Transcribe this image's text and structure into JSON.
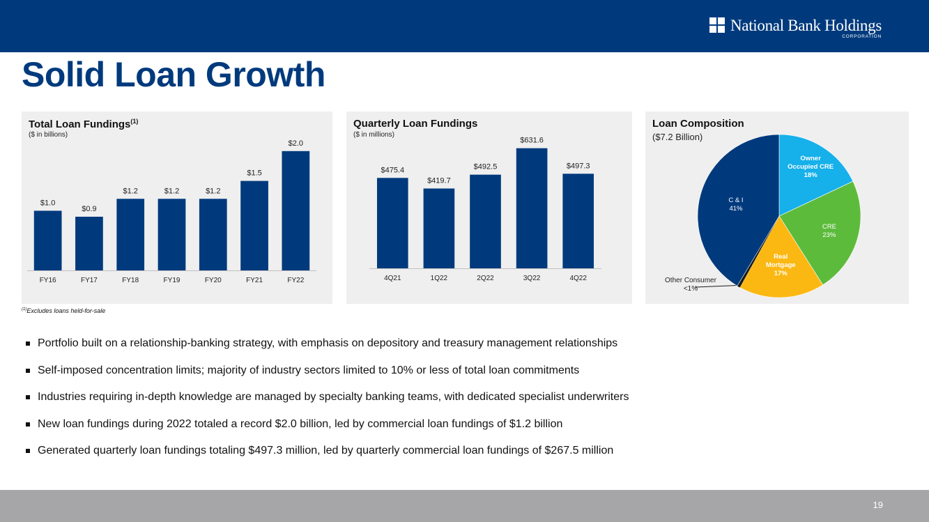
{
  "header": {
    "logo_text": "National Bank Holdings",
    "logo_sub": "CORPORATION",
    "brand_color": "#003a7d"
  },
  "page_title": "Solid Loan Growth",
  "chart_data": [
    {
      "type": "bar",
      "title": "Total Loan Fundings",
      "title_superscript": "(1)",
      "subtitle": "($ in billions)",
      "categories": [
        "FY16",
        "FY17",
        "FY18",
        "FY19",
        "FY20",
        "FY21",
        "FY22"
      ],
      "values": [
        1.0,
        0.9,
        1.2,
        1.2,
        1.2,
        1.5,
        2.0
      ],
      "value_labels": [
        "$1.0",
        "$0.9",
        "$1.2",
        "$1.2",
        "$1.2",
        "$1.5",
        "$2.0"
      ],
      "ylim": [
        0,
        2.5
      ],
      "color": "#003a7d"
    },
    {
      "type": "bar",
      "title": "Quarterly Loan Fundings",
      "subtitle": "($ in millions)",
      "categories": [
        "4Q21",
        "1Q22",
        "2Q22",
        "3Q22",
        "4Q22"
      ],
      "values": [
        475.4,
        419.7,
        492.5,
        631.6,
        497.3
      ],
      "value_labels": [
        "$475.4",
        "$419.7",
        "$492.5",
        "$631.6",
        "$497.3"
      ],
      "ylim": [
        0,
        700
      ],
      "color": "#003a7d"
    },
    {
      "type": "pie",
      "title": "Loan Composition",
      "subtitle": "($7.2 Billion)",
      "slices": [
        {
          "label": "Owner Occupied CRE",
          "pct_label": "18%",
          "value": 18,
          "color": "#16b0ea",
          "bold": true,
          "lines": [
            "Owner",
            "Occupied CRE",
            "18%"
          ]
        },
        {
          "label": "CRE",
          "pct_label": "23%",
          "value": 23,
          "color": "#5dbb3c",
          "bold": false,
          "lines": [
            "CRE",
            "23%"
          ]
        },
        {
          "label": "Real Mortgage",
          "pct_label": "17%",
          "value": 17,
          "color": "#fbb813",
          "bold": true,
          "lines": [
            "Real",
            "Mortgage",
            "17%"
          ]
        },
        {
          "label": "Other Consumer",
          "pct_label": "<1%",
          "value": 0.6,
          "color": "#1a1a1a",
          "bold": false,
          "lines": [
            "Other Consumer",
            "<1%"
          ]
        },
        {
          "label": "C & I",
          "pct_label": "41%",
          "value": 41.4,
          "color": "#003a7d",
          "bold": false,
          "lines": [
            "C & I",
            "41%"
          ]
        }
      ]
    }
  ],
  "footnote": {
    "marker": "(1)",
    "text": "Excludes loans held-for-sale"
  },
  "bullets": [
    "Portfolio built on a relationship-banking strategy, with emphasis on depository and treasury management relationships",
    "Self-imposed concentration limits; majority of industry sectors limited to 10% or less of total loan commitments",
    "Industries requiring in-depth knowledge are managed by specialty banking teams, with dedicated specialist underwriters",
    "New loan fundings during 2022 totaled a record $2.0 billion, led by commercial loan fundings of $1.2 billion",
    "Generated quarterly loan fundings totaling $497.3 million, led by quarterly commercial loan fundings of $267.5 million"
  ],
  "page_number": "19"
}
